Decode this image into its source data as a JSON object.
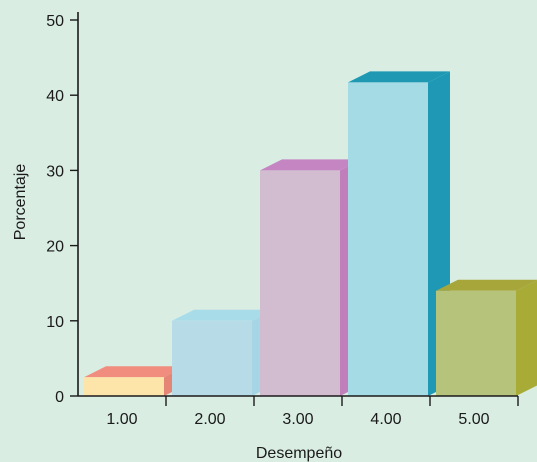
{
  "chart_data": {
    "type": "bar",
    "title": "",
    "xlabel": "Desempeño",
    "ylabel": "Porcentaje",
    "categories": [
      "1.00",
      "2.00",
      "3.00",
      "4.00",
      "5.00"
    ],
    "values": [
      2.5,
      10.0,
      30.0,
      41.7,
      14.0
    ],
    "ylim": [
      0,
      50
    ],
    "yticks": [
      "0",
      "10",
      "20",
      "30",
      "40",
      "50"
    ],
    "grid": false,
    "legend": "none",
    "style": "3d",
    "colors": {
      "background": "#d9ede3",
      "bars": [
        {
          "front": "#fde5a9",
          "top": "#f08d7e",
          "side": "#e58576"
        },
        {
          "front": "#b8dbe8",
          "top": "#a9dce9",
          "side": "#a6d6e6"
        },
        {
          "front": "#d1bcd0",
          "top": "#c585c2",
          "side": "#c07ebb"
        },
        {
          "front": "#a5dbe5",
          "top": "#1e98b3",
          "side": "#1f98b5"
        },
        {
          "front": "#b6c37b",
          "top": "#a7a63a",
          "side": "#a8ab35"
        }
      ]
    }
  }
}
